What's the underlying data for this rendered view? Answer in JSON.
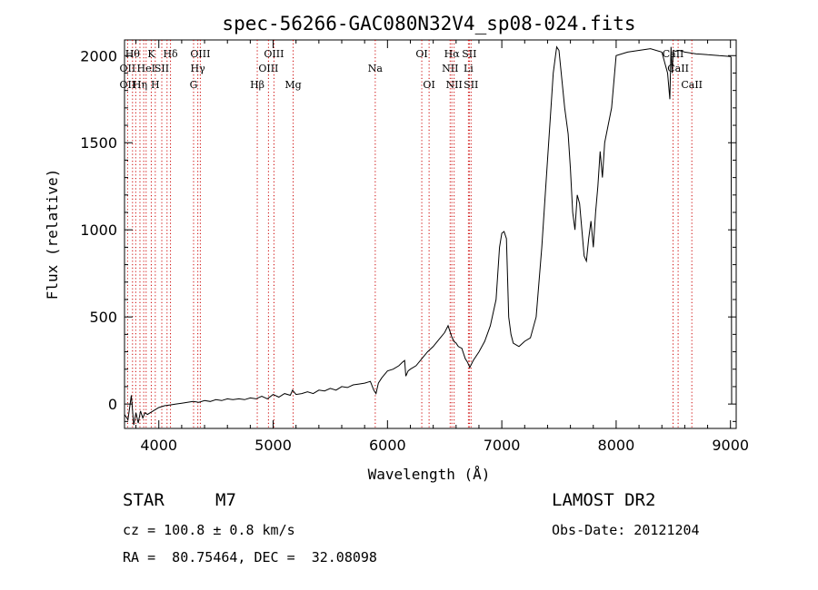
{
  "chart_data": {
    "type": "line",
    "title": "spec-56266-GAC080N32V4_sp08-024.fits",
    "xlabel": "Wavelength (Å)",
    "ylabel": "Flux (relative)",
    "xlim": [
      3700,
      9050
    ],
    "ylim": [
      -140,
      2090
    ],
    "xticks": [
      4000,
      5000,
      6000,
      7000,
      8000,
      9000
    ],
    "yticks": [
      0,
      500,
      1000,
      1500,
      2000
    ],
    "grid": false,
    "line_color": "#000000",
    "marker_color": "#cc0000",
    "series": [
      {
        "x": [
          3700,
          3730,
          3760,
          3780,
          3800,
          3820,
          3840,
          3860,
          3880,
          3900,
          3950,
          4000,
          4050,
          4100,
          4150,
          4200,
          4250,
          4300,
          4350,
          4400,
          4450,
          4500,
          4550,
          4600,
          4650,
          4700,
          4750,
          4800,
          4850,
          4900,
          4950,
          5000,
          5050,
          5100,
          5150,
          5170,
          5200,
          5250,
          5300,
          5350,
          5400,
          5450,
          5500,
          5550,
          5600,
          5650,
          5700,
          5750,
          5800,
          5850,
          5880,
          5900,
          5920,
          5950,
          6000,
          6050,
          6100,
          6130,
          6150,
          6160,
          6180,
          6200,
          6250,
          6300,
          6350,
          6400,
          6450,
          6500,
          6530,
          6560,
          6580,
          6600,
          6620,
          6650,
          6680,
          6700,
          6720,
          6750,
          6800,
          6850,
          6900,
          6950,
          6980,
          7000,
          7020,
          7040,
          7060,
          7080,
          7100,
          7150,
          7200,
          7250,
          7300,
          7350,
          7400,
          7430,
          7450,
          7470,
          7480,
          7500,
          7550,
          7580,
          7600,
          7620,
          7640,
          7660,
          7680,
          7700,
          7720,
          7740,
          7760,
          7780,
          7800,
          7820,
          7840,
          7860,
          7880,
          7900,
          7930,
          7960,
          8000,
          8100,
          8200,
          8300,
          8400,
          8450,
          8470,
          8480,
          8490,
          8500,
          8520,
          8550,
          8600,
          8650,
          8700,
          8750,
          8800,
          8850,
          8900,
          8950,
          9000,
          9005,
          9010
        ],
        "y": [
          -60,
          -90,
          50,
          -120,
          -50,
          -110,
          -40,
          -80,
          -50,
          -60,
          -40,
          -20,
          -10,
          -5,
          0,
          5,
          10,
          15,
          10,
          20,
          15,
          25,
          20,
          30,
          25,
          30,
          25,
          35,
          30,
          45,
          30,
          55,
          40,
          60,
          50,
          80,
          55,
          60,
          70,
          60,
          80,
          75,
          90,
          80,
          100,
          95,
          110,
          115,
          120,
          130,
          80,
          60,
          120,
          150,
          190,
          200,
          220,
          240,
          250,
          160,
          190,
          200,
          220,
          260,
          300,
          330,
          370,
          410,
          450,
          390,
          360,
          350,
          330,
          320,
          260,
          240,
          210,
          250,
          300,
          360,
          450,
          600,
          900,
          980,
          990,
          950,
          500,
          400,
          350,
          330,
          360,
          380,
          500,
          900,
          1400,
          1700,
          1900,
          2000,
          2050,
          2030,
          1700,
          1550,
          1350,
          1100,
          1000,
          1200,
          1150,
          1000,
          850,
          820,
          950,
          1050,
          900,
          1100,
          1250,
          1450,
          1300,
          1500,
          1600,
          1700,
          2000,
          2020,
          2030,
          2040,
          2020,
          1900,
          1750,
          2050,
          1900,
          2030,
          2025,
          2030,
          2020,
          2015,
          2010,
          2008,
          2005,
          2003,
          2000,
          1998,
          1995,
          1990,
          0
        ]
      }
    ],
    "lines": [
      {
        "wl": 3727,
        "row1": "",
        "row2": "OII",
        "row3": "OII"
      },
      {
        "wl": 3770,
        "row1": "Hθ",
        "row2": "",
        "row3": ""
      },
      {
        "wl": 3798,
        "row1": "",
        "row2": "",
        "row3": ""
      },
      {
        "wl": 3835,
        "row1": "",
        "row2": "",
        "row3": "Hη"
      },
      {
        "wl": 3868,
        "row1": "",
        "row2": "",
        "row3": ""
      },
      {
        "wl": 3889,
        "row1": "",
        "row2": "HeI",
        "row3": ""
      },
      {
        "wl": 3934,
        "row1": "K",
        "row2": "",
        "row3": ""
      },
      {
        "wl": 3969,
        "row1": "",
        "row2": "",
        "row3": "H"
      },
      {
        "wl": 4026,
        "row1": "",
        "row2": "SII",
        "row3": ""
      },
      {
        "wl": 4072,
        "row1": "",
        "row2": "",
        "row3": ""
      },
      {
        "wl": 4102,
        "row1": "Hδ",
        "row2": "",
        "row3": ""
      },
      {
        "wl": 4304,
        "row1": "",
        "row2": "",
        "row3": "G"
      },
      {
        "wl": 4341,
        "row1": "",
        "row2": "Hγ",
        "row3": ""
      },
      {
        "wl": 4363,
        "row1": "OIII",
        "row2": "",
        "row3": ""
      },
      {
        "wl": 4861,
        "row1": "",
        "row2": "",
        "row3": "Hβ"
      },
      {
        "wl": 4959,
        "row1": "",
        "row2": "OIII",
        "row3": ""
      },
      {
        "wl": 5007,
        "row1": "OIII",
        "row2": "",
        "row3": ""
      },
      {
        "wl": 5175,
        "row1": "",
        "row2": "",
        "row3": "Mg"
      },
      {
        "wl": 5893,
        "row1": "",
        "row2": "Na",
        "row3": ""
      },
      {
        "wl": 6300,
        "row1": "OI",
        "row2": "",
        "row3": ""
      },
      {
        "wl": 6364,
        "row1": "",
        "row2": "",
        "row3": "OI"
      },
      {
        "wl": 6548,
        "row1": "",
        "row2": "NII",
        "row3": ""
      },
      {
        "wl": 6563,
        "row1": "Hα",
        "row2": "",
        "row3": ""
      },
      {
        "wl": 6583,
        "row1": "",
        "row2": "",
        "row3": "NII"
      },
      {
        "wl": 6708,
        "row1": "",
        "row2": "Li",
        "row3": ""
      },
      {
        "wl": 6716,
        "row1": "SII",
        "row2": "",
        "row3": ""
      },
      {
        "wl": 6731,
        "row1": "",
        "row2": "",
        "row3": "SII"
      },
      {
        "wl": 8498,
        "row1": "CaII",
        "row2": "",
        "row3": ""
      },
      {
        "wl": 8542,
        "row1": "",
        "row2": "CaII",
        "row3": ""
      },
      {
        "wl": 8662,
        "row1": "",
        "row2": "",
        "row3": "CaII"
      }
    ]
  },
  "info": {
    "class": "STAR",
    "subclass": "M7",
    "survey": "LAMOST DR2",
    "cz": "cz = 100.8 ± 0.8 km/s",
    "obsdate": "Obs-Date: 20121204",
    "coords": "RA =  80.75464, DEC =  32.08098"
  }
}
